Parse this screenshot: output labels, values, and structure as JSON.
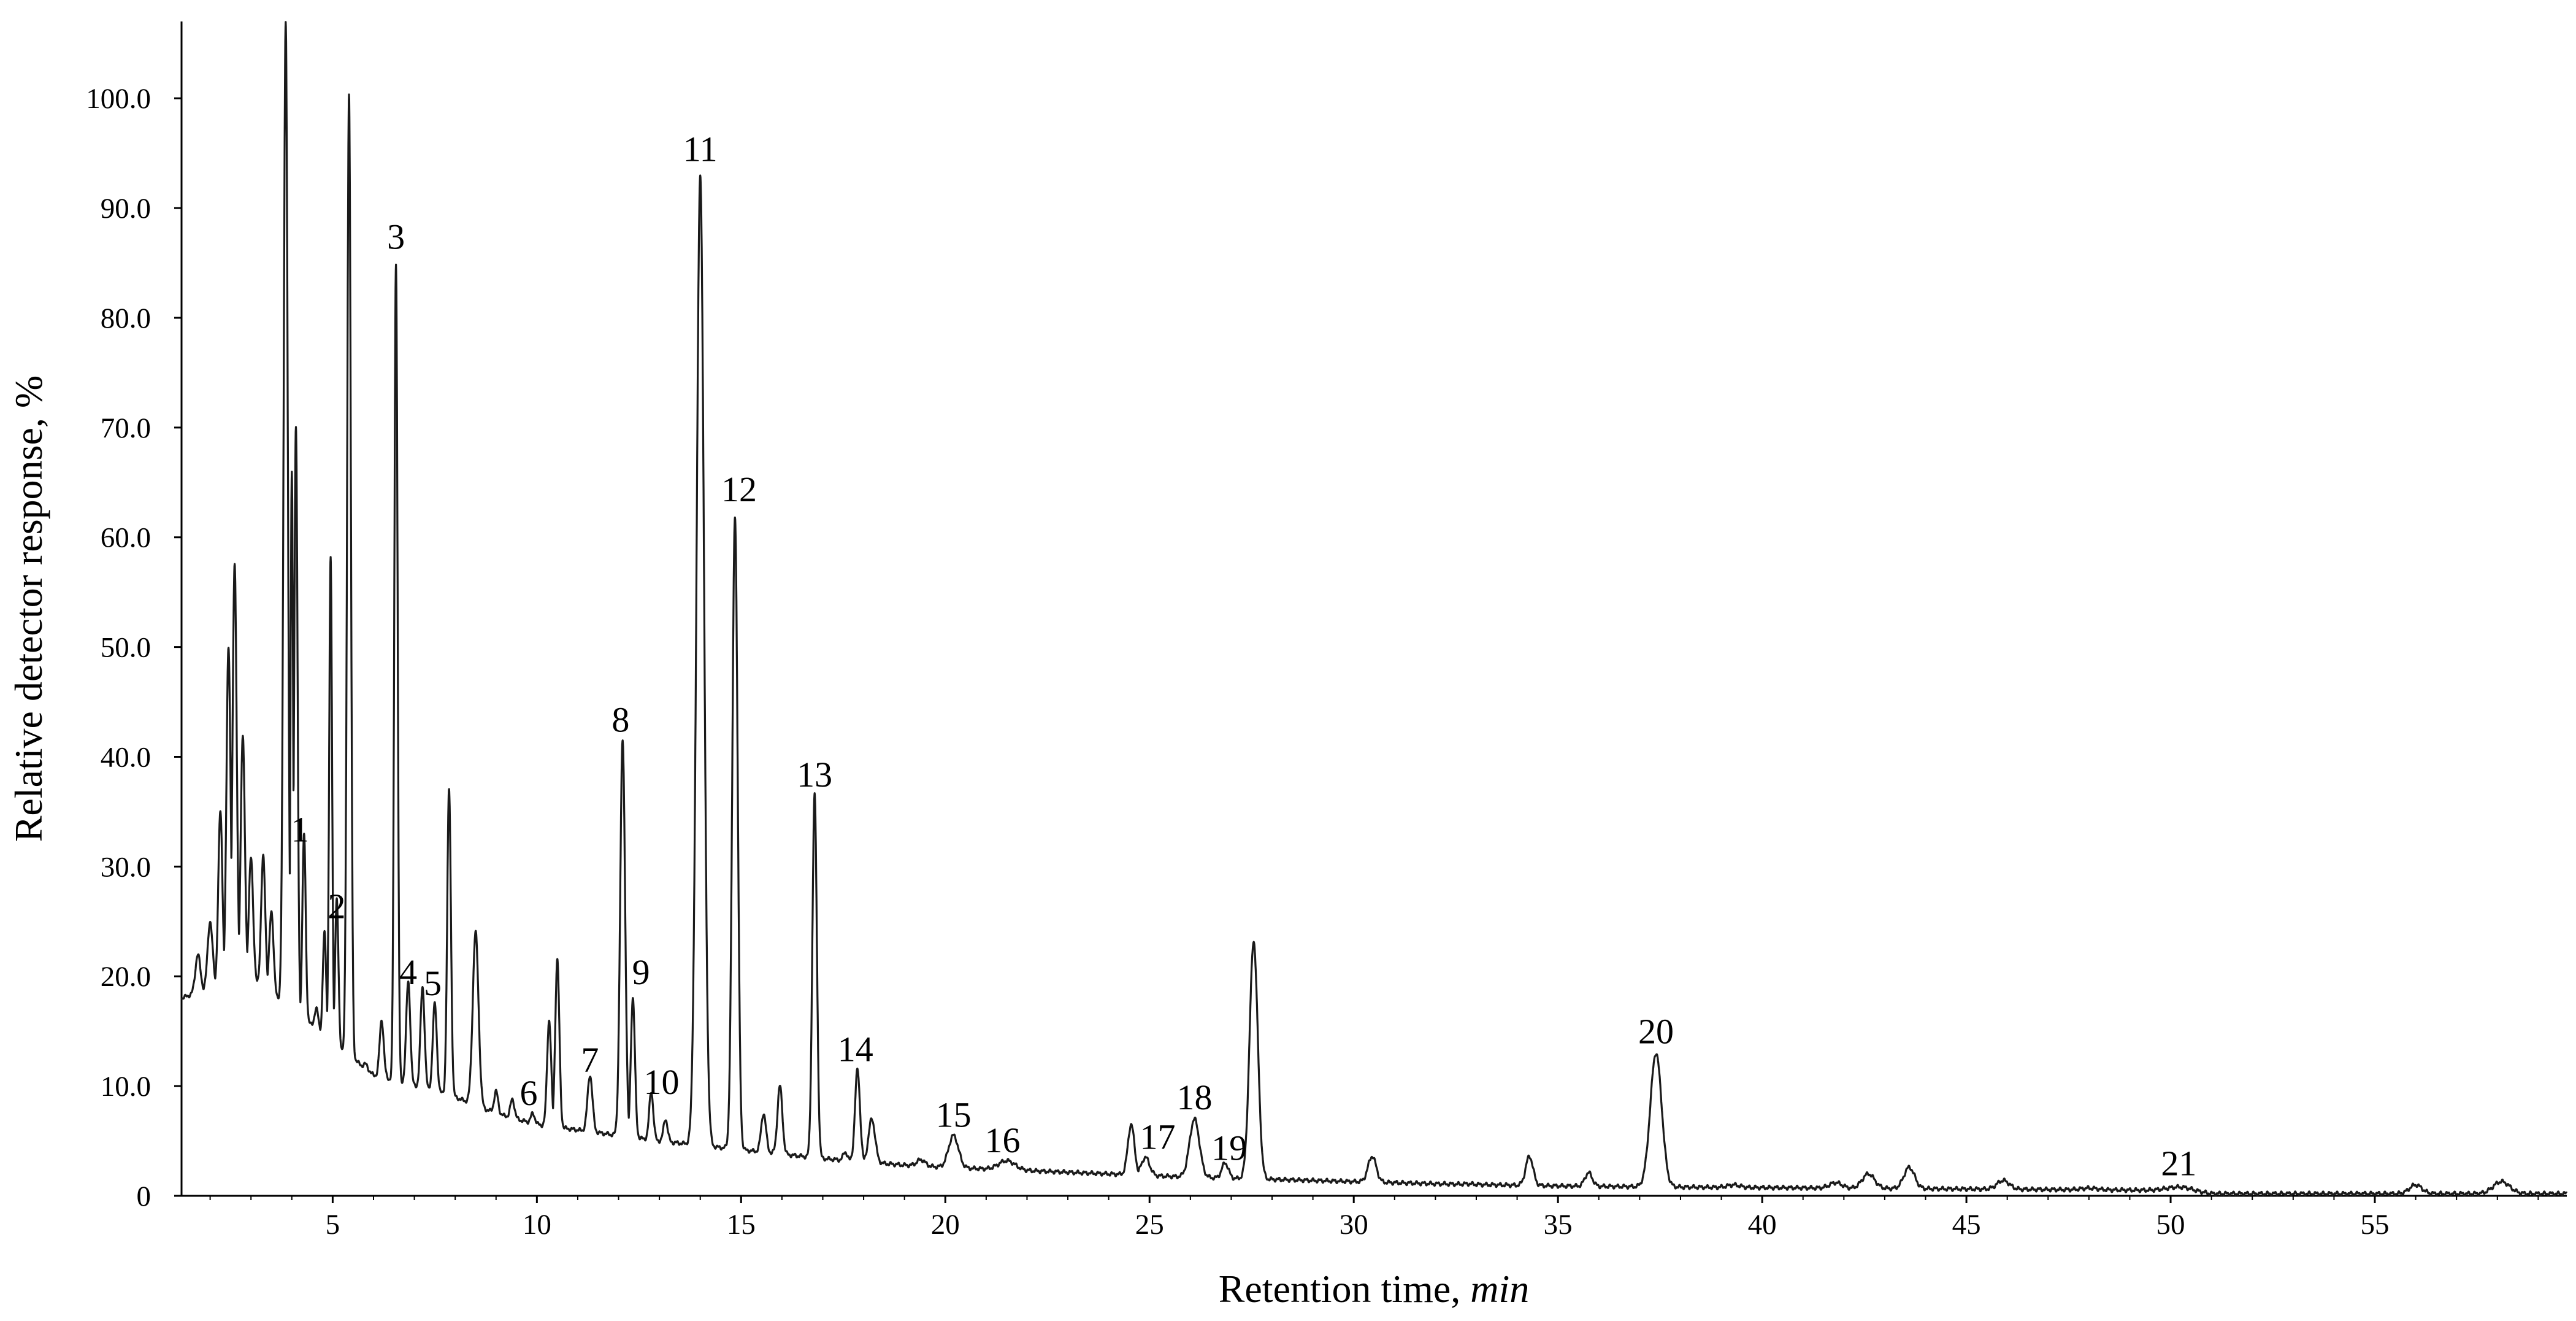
{
  "chart_data": {
    "type": "line",
    "xlabel": "Retention time,",
    "xlabel_unit": "min",
    "ylabel": "Relative detector response, %",
    "xlim": [
      1.3,
      59.7
    ],
    "ylim": [
      0,
      107
    ],
    "x_ticks": [
      5,
      10,
      15,
      20,
      25,
      30,
      35,
      40,
      45,
      50,
      55
    ],
    "x_tick_labels": [
      "5",
      "10",
      "15",
      "20",
      "25",
      "30",
      "35",
      "40",
      "45",
      "50",
      "55"
    ],
    "y_ticks": [
      0,
      10,
      20,
      30,
      40,
      50,
      60,
      70,
      80,
      90,
      100
    ],
    "y_tick_labels": [
      "0",
      "10.0",
      "20.0",
      "30.0",
      "40.0",
      "50.0",
      "60.0",
      "70.0",
      "80.0",
      "90.0",
      "100.0"
    ],
    "grid": false,
    "series": [
      {
        "color": "#1a1a1a",
        "baseline": [
          [
            1.3,
            18
          ],
          [
            2,
            19
          ],
          [
            3,
            20
          ],
          [
            4,
            17
          ],
          [
            5,
            14
          ],
          [
            6,
            11
          ],
          [
            7,
            10
          ],
          [
            8,
            9
          ],
          [
            9,
            7.5
          ],
          [
            10,
            6.5
          ],
          [
            11,
            6
          ],
          [
            12,
            5.5
          ],
          [
            13,
            5
          ],
          [
            14,
            4.6
          ],
          [
            15,
            4.2
          ],
          [
            16,
            3.8
          ],
          [
            17,
            3.4
          ],
          [
            18,
            3.1
          ],
          [
            19,
            2.8
          ],
          [
            20,
            2.6
          ],
          [
            22,
            2.3
          ],
          [
            24,
            2
          ],
          [
            26,
            1.7
          ],
          [
            28,
            1.5
          ],
          [
            30,
            1.3
          ],
          [
            32,
            1.1
          ],
          [
            35,
            0.9
          ],
          [
            38,
            0.8
          ],
          [
            42,
            0.7
          ],
          [
            46,
            0.6
          ],
          [
            50,
            0.5
          ],
          [
            51,
            0.2
          ],
          [
            55,
            0.2
          ],
          [
            59.7,
            0.2
          ]
        ],
        "peaks": [
          [
            1.7,
            22,
            0.06
          ],
          [
            2.0,
            25,
            0.06
          ],
          [
            2.25,
            35,
            0.05
          ],
          [
            2.45,
            50,
            0.05
          ],
          [
            2.6,
            57.5,
            0.05
          ],
          [
            2.8,
            42,
            0.05
          ],
          [
            3.0,
            31,
            0.05
          ],
          [
            3.3,
            31,
            0.05
          ],
          [
            3.5,
            26,
            0.05
          ],
          [
            3.85,
            107,
            0.05
          ],
          [
            4.0,
            66,
            0.03
          ],
          [
            4.1,
            70,
            0.04
          ],
          [
            4.3,
            33,
            0.04
          ],
          [
            4.6,
            17,
            0.05
          ],
          [
            4.8,
            24,
            0.04
          ],
          [
            4.95,
            58,
            0.035
          ],
          [
            5.1,
            27,
            0.04
          ],
          [
            5.4,
            100.5,
            0.045
          ],
          [
            5.8,
            12,
            0.05
          ],
          [
            6.2,
            16,
            0.05
          ],
          [
            6.55,
            85,
            0.04
          ],
          [
            6.85,
            19.5,
            0.05
          ],
          [
            7.2,
            19,
            0.05
          ],
          [
            7.5,
            17.5,
            0.05
          ],
          [
            7.85,
            37,
            0.045
          ],
          [
            8.5,
            24,
            0.07
          ],
          [
            9.0,
            9.5,
            0.05
          ],
          [
            9.4,
            8.8,
            0.05
          ],
          [
            9.9,
            7.5,
            0.05
          ],
          [
            10.3,
            16,
            0.05
          ],
          [
            10.5,
            21.5,
            0.05
          ],
          [
            11.3,
            11,
            0.06
          ],
          [
            12.1,
            41.5,
            0.06
          ],
          [
            12.35,
            18,
            0.05
          ],
          [
            12.8,
            9.5,
            0.05
          ],
          [
            13.15,
            7,
            0.05
          ],
          [
            14.0,
            93,
            0.09
          ],
          [
            14.85,
            62,
            0.065
          ],
          [
            15.55,
            7.5,
            0.06
          ],
          [
            15.95,
            10,
            0.06
          ],
          [
            16.8,
            36.5,
            0.055
          ],
          [
            17.55,
            4,
            0.05
          ],
          [
            17.85,
            11.5,
            0.06
          ],
          [
            18.2,
            7,
            0.08
          ],
          [
            19.4,
            3.3,
            0.1
          ],
          [
            20.2,
            5.5,
            0.12
          ],
          [
            21.5,
            3.2,
            0.2
          ],
          [
            24.55,
            6.5,
            0.08
          ],
          [
            24.9,
            3.5,
            0.1
          ],
          [
            26.1,
            7,
            0.12
          ],
          [
            26.85,
            3,
            0.08
          ],
          [
            27.55,
            23.2,
            0.1
          ],
          [
            30.45,
            3.6,
            0.1
          ],
          [
            31.9,
            1,
            0.1
          ],
          [
            32.8,
            1.1,
            0.1
          ],
          [
            34.3,
            3.6,
            0.09
          ],
          [
            35.75,
            2.1,
            0.09
          ],
          [
            37.4,
            13,
            0.14
          ],
          [
            39.3,
            1,
            0.15
          ],
          [
            41.8,
            1.2,
            0.15
          ],
          [
            42.6,
            2,
            0.15
          ],
          [
            43.6,
            2.6,
            0.13
          ],
          [
            45.9,
            1.4,
            0.15
          ],
          [
            48.0,
            0.7,
            0.2
          ],
          [
            50.2,
            0.8,
            0.3
          ],
          [
            56.0,
            1,
            0.15
          ],
          [
            58.1,
            1.3,
            0.2
          ]
        ]
      }
    ],
    "peak_labels": [
      {
        "text": "1",
        "x": 4.2,
        "y": 31.5
      },
      {
        "text": "2",
        "x": 5.1,
        "y": 24.5
      },
      {
        "text": "3",
        "x": 6.55,
        "y": 85.5
      },
      {
        "text": "4",
        "x": 6.85,
        "y": 18.5
      },
      {
        "text": "5",
        "x": 7.45,
        "y": 17.5
      },
      {
        "text": "6",
        "x": 9.8,
        "y": 7.5
      },
      {
        "text": "7",
        "x": 11.3,
        "y": 10.5
      },
      {
        "text": "8",
        "x": 12.05,
        "y": 41.5
      },
      {
        "text": "9",
        "x": 12.55,
        "y": 18.5
      },
      {
        "text": "10",
        "x": 13.05,
        "y": 8.5
      },
      {
        "text": "11",
        "x": 14.0,
        "y": 93.5
      },
      {
        "text": "12",
        "x": 14.95,
        "y": 62.5
      },
      {
        "text": "13",
        "x": 16.8,
        "y": 36.5
      },
      {
        "text": "14",
        "x": 17.8,
        "y": 11.5
      },
      {
        "text": "15",
        "x": 20.2,
        "y": 5.5
      },
      {
        "text": "16",
        "x": 21.4,
        "y": 3.2
      },
      {
        "text": "17",
        "x": 25.2,
        "y": 3.5
      },
      {
        "text": "18",
        "x": 26.1,
        "y": 7.1
      },
      {
        "text": "19",
        "x": 26.95,
        "y": 2.5
      },
      {
        "text": "20",
        "x": 37.4,
        "y": 13.1
      },
      {
        "text": "21",
        "x": 50.2,
        "y": 1.1
      }
    ]
  }
}
